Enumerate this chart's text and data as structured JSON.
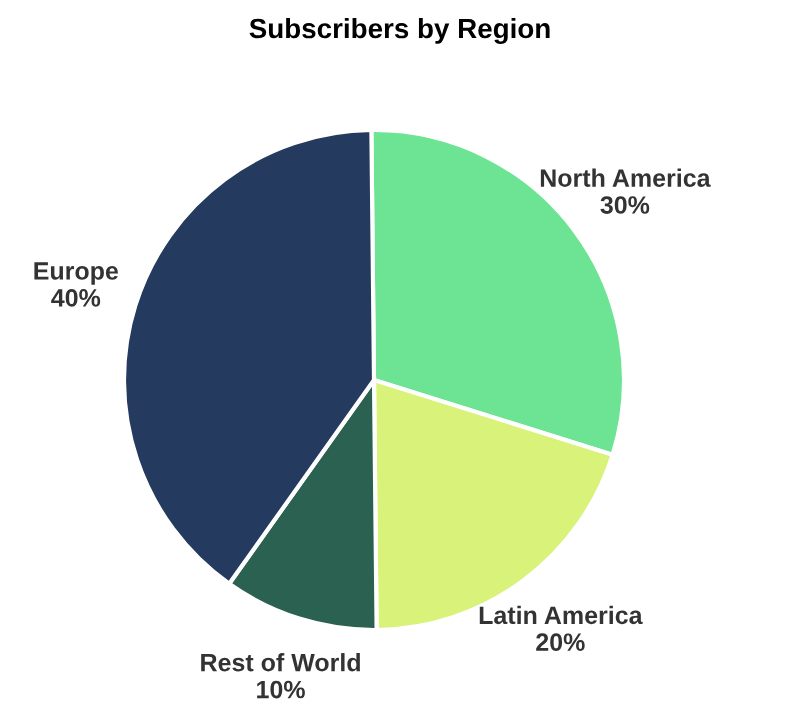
{
  "chart_data": {
    "type": "pie",
    "title": "Subscribers by Region",
    "categories": [
      "North America",
      "Latin America",
      "Rest of World",
      "Europe"
    ],
    "values": [
      30,
      20,
      10,
      40
    ],
    "value_labels": [
      "30%",
      "20%",
      "10%",
      "40%"
    ],
    "colors": [
      "#6ce493",
      "#d9f27a",
      "#2a6150",
      "#243a5e"
    ]
  }
}
